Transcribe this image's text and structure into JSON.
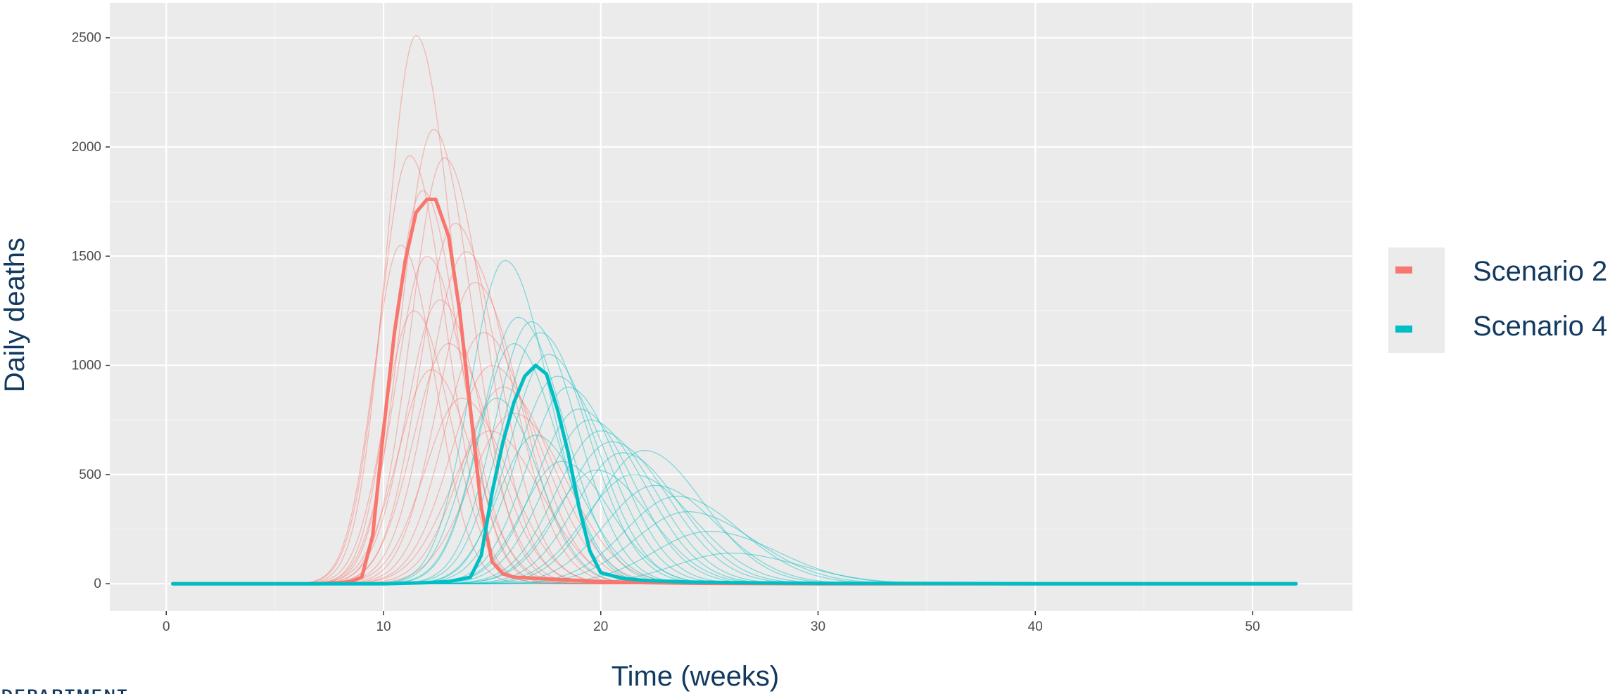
{
  "chart_data": {
    "type": "line",
    "title": "",
    "xlabel": "Time (weeks)",
    "ylabel": "Daily deaths",
    "xlim": [
      -2.6,
      54.6
    ],
    "ylim": [
      -125,
      2660
    ],
    "x_ticks": [
      0,
      10,
      20,
      30,
      40,
      50
    ],
    "y_ticks": [
      0,
      500,
      1000,
      1500,
      2000,
      2500
    ],
    "grid": true,
    "legend_position": "right",
    "background": "#ebebeb",
    "series": [
      {
        "name": "Scenario 2",
        "color": "#f8766d",
        "role": "central estimate",
        "x": [
          0.3,
          7,
          8,
          8.5,
          9,
          9.5,
          10,
          10.5,
          11,
          11.5,
          12,
          12.4,
          13,
          13.5,
          14,
          14.5,
          15,
          15.5,
          16,
          17,
          18,
          20,
          22,
          25,
          30,
          40,
          52
        ],
        "y": [
          0,
          0,
          5,
          10,
          30,
          220,
          700,
          1150,
          1480,
          1700,
          1760,
          1760,
          1590,
          1250,
          800,
          350,
          100,
          45,
          30,
          25,
          20,
          10,
          5,
          2,
          0,
          0,
          0
        ]
      },
      {
        "name": "Scenario 4",
        "color": "#00bfc4",
        "role": "central estimate",
        "x": [
          0.3,
          10,
          12,
          13,
          14,
          14.5,
          15,
          15.5,
          16,
          16.5,
          17,
          17.5,
          18,
          18.5,
          19,
          19.5,
          20,
          21,
          22,
          24,
          26,
          30,
          40,
          52
        ],
        "y": [
          0,
          0,
          5,
          10,
          30,
          130,
          420,
          650,
          830,
          950,
          1000,
          960,
          800,
          600,
          350,
          150,
          50,
          25,
          15,
          8,
          5,
          2,
          0,
          0
        ]
      }
    ],
    "ensemble": [
      {
        "name": "Scenario 2",
        "color": "#f8766d",
        "description": "many faint simulation runs",
        "runs": [
          {
            "peak_week": 11.5,
            "peak": 2510,
            "width": 1.6
          },
          {
            "peak_week": 12.3,
            "peak": 2080,
            "width": 1.7
          },
          {
            "peak_week": 11.2,
            "peak": 1960,
            "width": 1.6
          },
          {
            "peak_week": 12.8,
            "peak": 1950,
            "width": 1.8
          },
          {
            "peak_week": 11.8,
            "peak": 1800,
            "width": 1.6
          },
          {
            "peak_week": 13.3,
            "peak": 1650,
            "width": 1.9
          },
          {
            "peak_week": 10.8,
            "peak": 1550,
            "width": 1.5
          },
          {
            "peak_week": 12.0,
            "peak": 1500,
            "width": 1.7
          },
          {
            "peak_week": 13.8,
            "peak": 1520,
            "width": 2.0
          },
          {
            "peak_week": 14.2,
            "peak": 1380,
            "width": 2.0
          },
          {
            "peak_week": 12.6,
            "peak": 1300,
            "width": 1.8
          },
          {
            "peak_week": 11.4,
            "peak": 1250,
            "width": 1.6
          },
          {
            "peak_week": 14.6,
            "peak": 1150,
            "width": 2.1
          },
          {
            "peak_week": 13.0,
            "peak": 1100,
            "width": 1.9
          },
          {
            "peak_week": 15.0,
            "peak": 1000,
            "width": 2.2
          },
          {
            "peak_week": 12.2,
            "peak": 980,
            "width": 1.8
          },
          {
            "peak_week": 15.5,
            "peak": 900,
            "width": 2.2
          },
          {
            "peak_week": 13.6,
            "peak": 850,
            "width": 2.0
          },
          {
            "peak_week": 16.0,
            "peak": 780,
            "width": 2.3
          },
          {
            "peak_week": 14.9,
            "peak": 700,
            "width": 2.2
          }
        ]
      },
      {
        "name": "Scenario 4",
        "color": "#00bfc4",
        "description": "many faint simulation runs",
        "runs": [
          {
            "peak_week": 15.6,
            "peak": 1480,
            "width": 1.9
          },
          {
            "peak_week": 16.2,
            "peak": 1220,
            "width": 2.0
          },
          {
            "peak_week": 16.8,
            "peak": 1200,
            "width": 2.0
          },
          {
            "peak_week": 17.2,
            "peak": 1150,
            "width": 2.1
          },
          {
            "peak_week": 16.0,
            "peak": 1100,
            "width": 1.9
          },
          {
            "peak_week": 17.6,
            "peak": 1050,
            "width": 2.1
          },
          {
            "peak_week": 18.0,
            "peak": 950,
            "width": 2.2
          },
          {
            "peak_week": 18.5,
            "peak": 900,
            "width": 2.2
          },
          {
            "peak_week": 15.2,
            "peak": 850,
            "width": 1.8
          },
          {
            "peak_week": 19.0,
            "peak": 800,
            "width": 2.3
          },
          {
            "peak_week": 19.5,
            "peak": 750,
            "width": 2.4
          },
          {
            "peak_week": 20.0,
            "peak": 700,
            "width": 2.4
          },
          {
            "peak_week": 17.0,
            "peak": 680,
            "width": 2.0
          },
          {
            "peak_week": 20.5,
            "peak": 650,
            "width": 2.5
          },
          {
            "peak_week": 21.0,
            "peak": 600,
            "width": 2.5
          },
          {
            "peak_week": 22.0,
            "peak": 610,
            "width": 2.6
          },
          {
            "peak_week": 21.5,
            "peak": 500,
            "width": 2.6
          },
          {
            "peak_week": 22.5,
            "peak": 450,
            "width": 2.7
          },
          {
            "peak_week": 23.5,
            "peak": 400,
            "width": 2.8
          },
          {
            "peak_week": 24.0,
            "peak": 330,
            "width": 2.9
          },
          {
            "peak_week": 25.0,
            "peak": 240,
            "width": 3.0
          },
          {
            "peak_week": 26.0,
            "peak": 140,
            "width": 3.0
          },
          {
            "peak_week": 18.2,
            "peak": 560,
            "width": 2.1
          },
          {
            "peak_week": 19.8,
            "peak": 520,
            "width": 2.3
          }
        ]
      }
    ]
  },
  "legend": {
    "items": [
      {
        "label": "Scenario 2",
        "color": "#f8766d"
      },
      {
        "label": "Scenario 4",
        "color": "#00bfc4"
      }
    ]
  },
  "footer": {
    "org_text": "DEPARTMENT"
  }
}
